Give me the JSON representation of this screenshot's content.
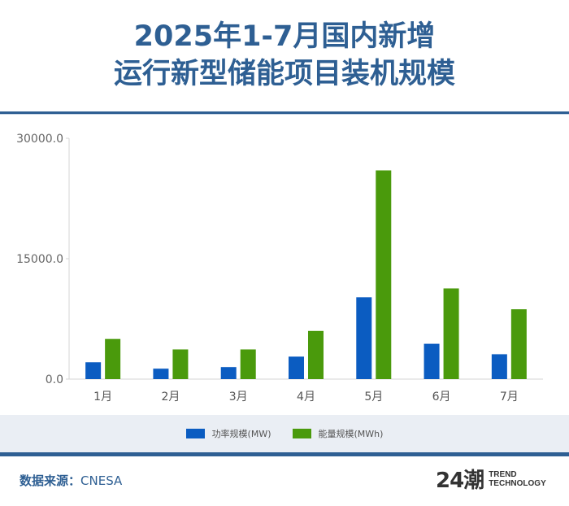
{
  "header": {
    "title_line1": "2025年1-7月国内新增",
    "title_line2": "运行新型储能项目装机规模"
  },
  "colors": {
    "title": "#2e5f93",
    "power": "#0b5cc1",
    "energy": "#4a9a0c",
    "legend_band": "#eaeef4"
  },
  "chart_data": {
    "type": "bar",
    "title": "2025年1-7月国内新增运行新型储能项目装机规模",
    "xlabel": "",
    "ylabel": "",
    "categories": [
      "1月",
      "2月",
      "3月",
      "4月",
      "5月",
      "6月",
      "7月"
    ],
    "series": [
      {
        "name": "功率规模(MW)",
        "color": "#0b5cc1",
        "values": [
          2100,
          1300,
          1500,
          2800,
          10200,
          4400,
          3100
        ]
      },
      {
        "name": "能量规模(MWh)",
        "color": "#4a9a0c",
        "values": [
          5000,
          3700,
          3700,
          6000,
          26000,
          11300,
          8700
        ]
      }
    ],
    "ylim": [
      0,
      30000
    ],
    "yticks": [
      0,
      15000,
      30000
    ],
    "ytick_labels": [
      "0.0",
      "15000.0",
      "30000.0"
    ],
    "grid": false,
    "legend_position": "bottom"
  },
  "legend": {
    "items": [
      {
        "label": "功率规模(MW)"
      },
      {
        "label": "能量规模(MWh)"
      }
    ]
  },
  "footer": {
    "source_label": "数据来源：",
    "source_value": "CNESA",
    "logo_mark": "24潮",
    "logo_line1": "TREND",
    "logo_line2": "TECHNOLOGY"
  }
}
